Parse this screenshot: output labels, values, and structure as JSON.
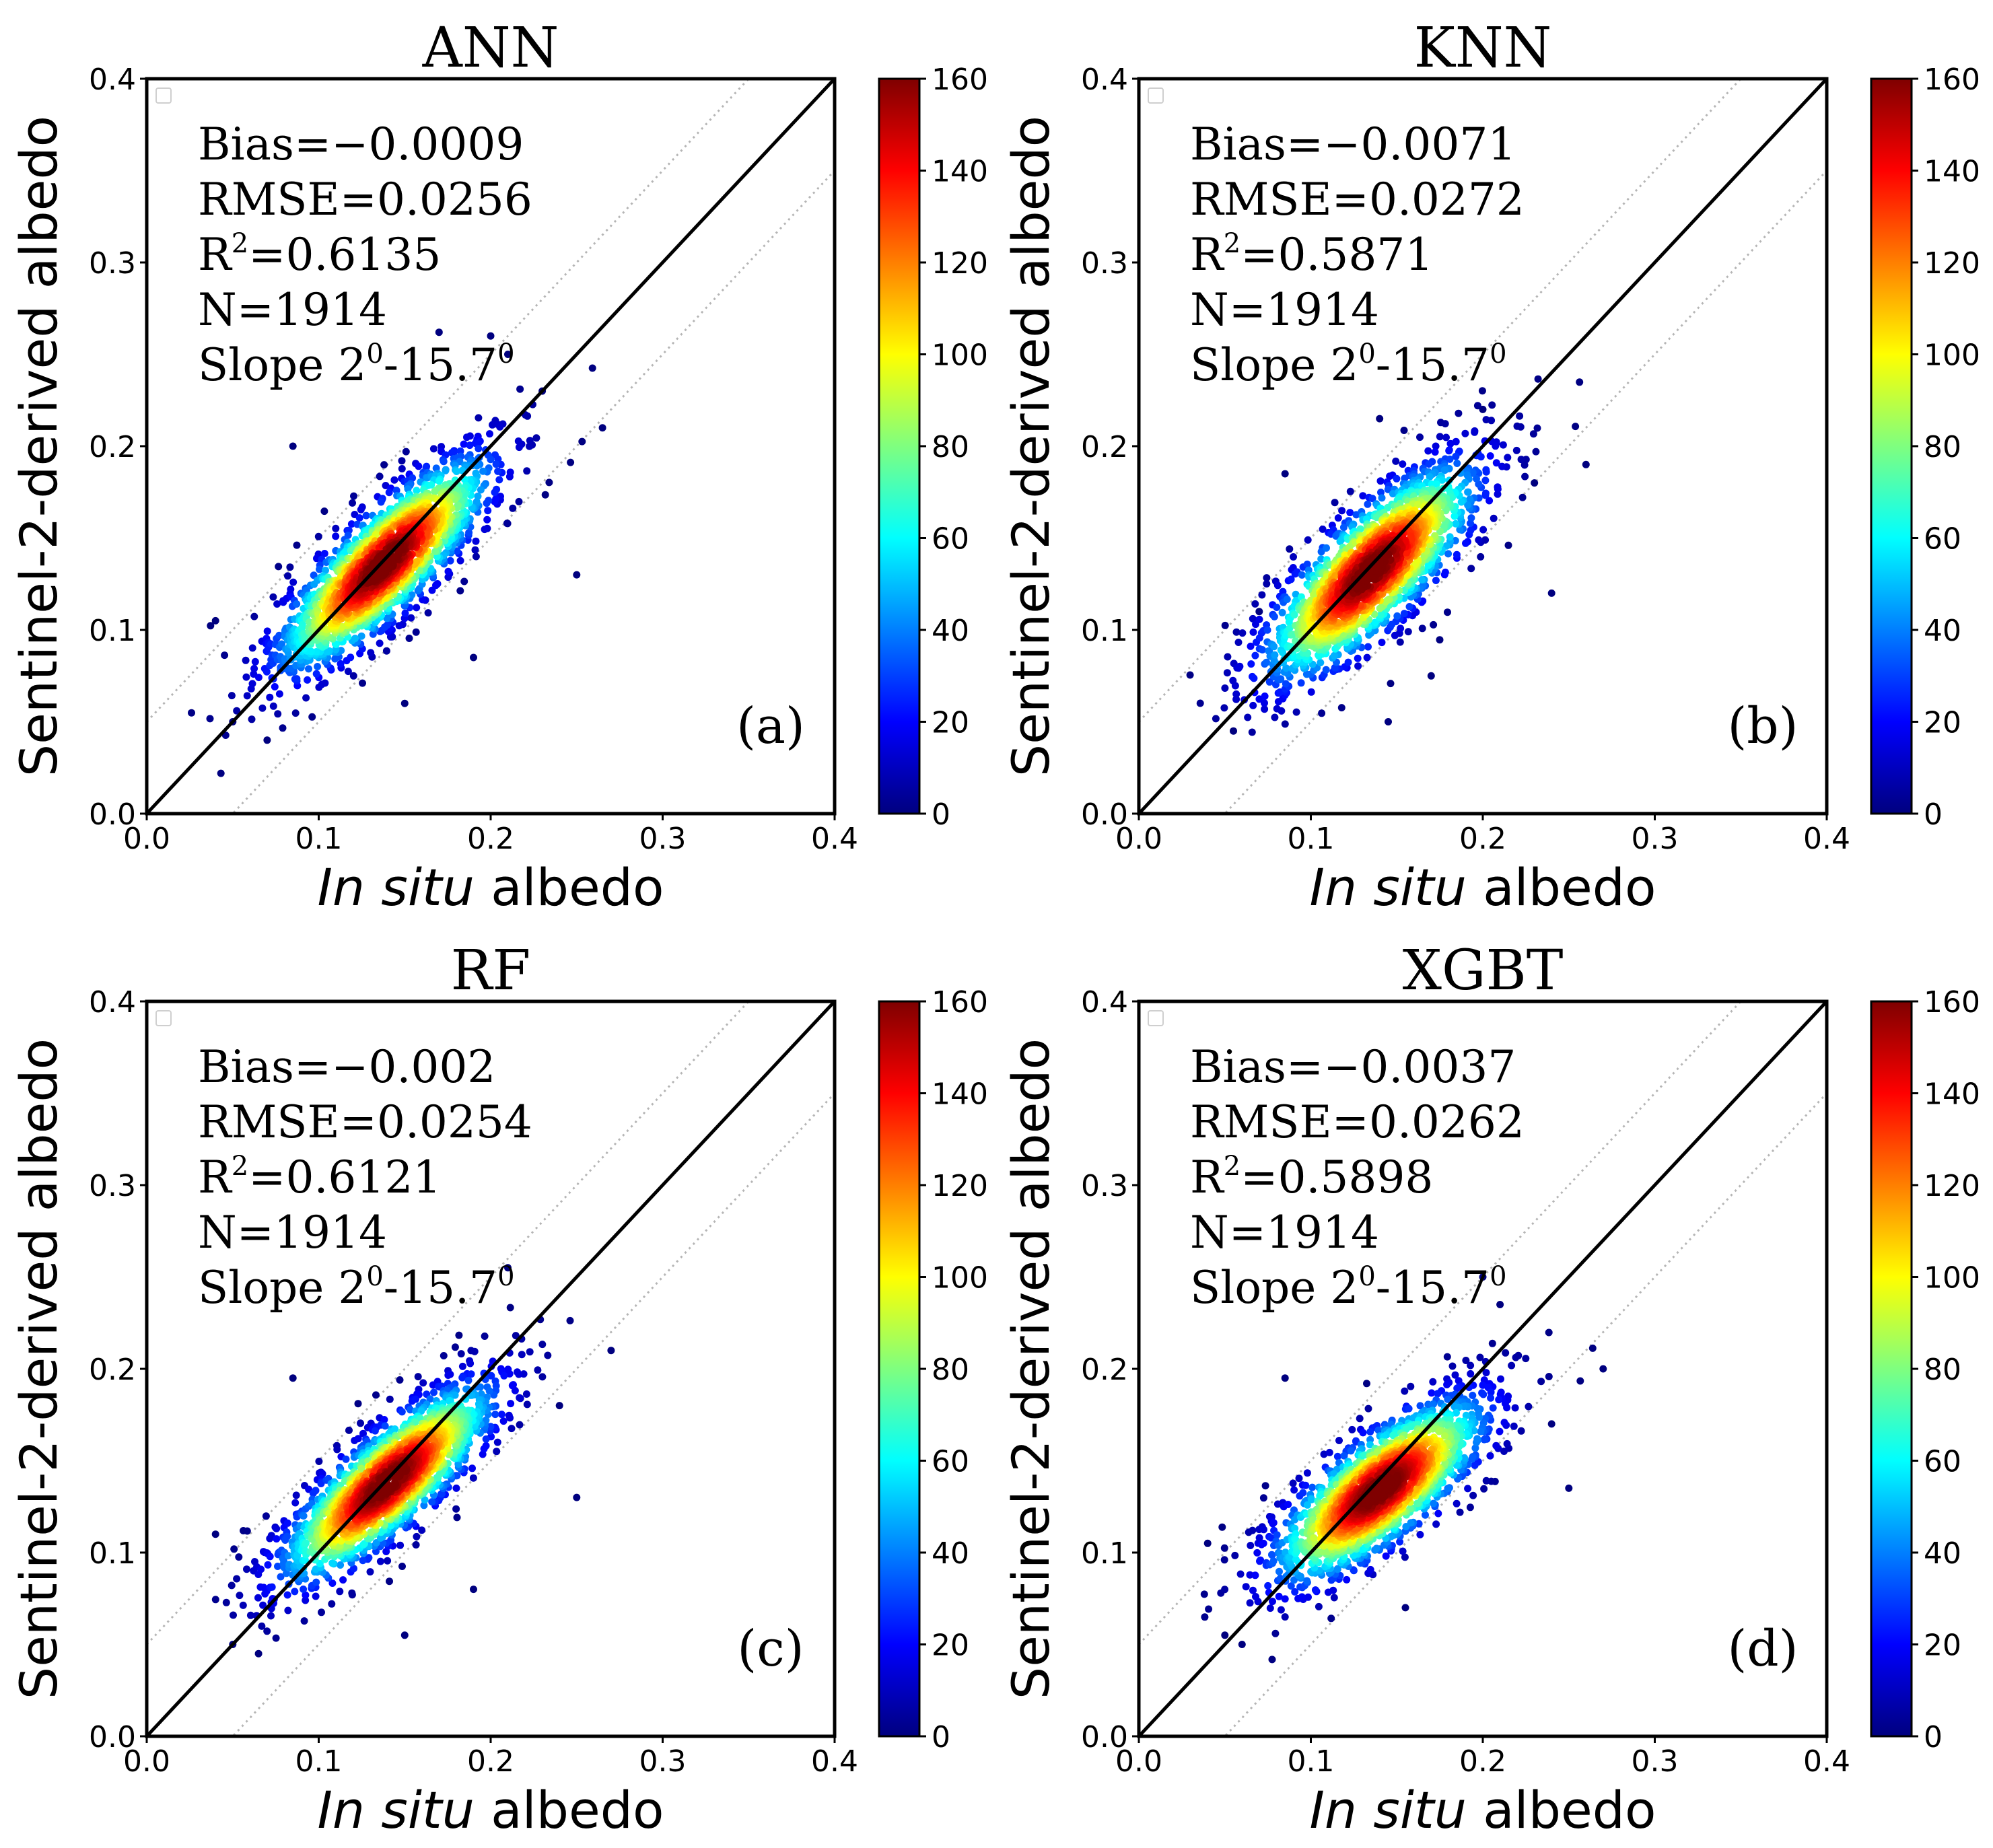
{
  "figure": {
    "colorbar_ticks": [
      "0",
      "20",
      "40",
      "60",
      "80",
      "100",
      "120",
      "140",
      "160"
    ],
    "colorbar_range": [
      0,
      160
    ],
    "colormap": "jet",
    "colormap_stops": [
      "#00007f",
      "#0000ff",
      "#007fff",
      "#00ffff",
      "#7fff7f",
      "#ffff00",
      "#ff7f00",
      "#ff0000",
      "#7f0000"
    ],
    "x_ticks": [
      "0.0",
      "0.1",
      "0.2",
      "0.3",
      "0.4"
    ],
    "y_ticks": [
      "0.0",
      "0.1",
      "0.2",
      "0.3",
      "0.4"
    ],
    "xlabel_italic": "In situ",
    "xlabel_rest": " albedo",
    "ylabel": "Sentinel-2-derived albedo"
  },
  "chart_data": [
    {
      "type": "scatter",
      "title": "ANN",
      "panel_label": "(a)",
      "stats": {
        "bias": "Bias=−0.0009",
        "rmse": "RMSE=0.0256",
        "r2_prefix": "R",
        "r2_value": "=0.6135",
        "n": "N=1914",
        "slope_text": "Slope 2",
        "slope_mid": "-15.7"
      },
      "xlim": [
        0,
        0.4
      ],
      "ylim": [
        0,
        0.4
      ],
      "one_to_one_line": true,
      "dotted_offset_lines": [
        0.05,
        -0.05
      ],
      "cloud": {
        "center": [
          0.138,
          0.136
        ],
        "slope": 0.78,
        "spread_x": 0.032,
        "spread_y": 0.017,
        "n_points": 1914
      },
      "outliers": [
        [
          0.2,
          0.26
        ],
        [
          0.21,
          0.25
        ],
        [
          0.23,
          0.23
        ],
        [
          0.085,
          0.2
        ],
        [
          0.265,
          0.21
        ],
        [
          0.25,
          0.13
        ],
        [
          0.05,
          0.05
        ],
        [
          0.04,
          0.105
        ],
        [
          0.19,
          0.085
        ],
        [
          0.15,
          0.06
        ],
        [
          0.07,
          0.04
        ],
        [
          0.17,
          0.262
        ]
      ]
    },
    {
      "type": "scatter",
      "title": "KNN",
      "panel_label": "(b)",
      "stats": {
        "bias": "Bias=−0.0071",
        "rmse": "RMSE=0.0272",
        "r2_prefix": "R",
        "r2_value": "=0.5871",
        "n": "N=1914",
        "slope_text": "Slope 2",
        "slope_mid": "-15.7"
      },
      "xlim": [
        0,
        0.4
      ],
      "ylim": [
        0,
        0.4
      ],
      "one_to_one_line": true,
      "dotted_offset_lines": [
        0.05,
        -0.05
      ],
      "cloud": {
        "center": [
          0.135,
          0.132
        ],
        "slope": 0.75,
        "spread_x": 0.032,
        "spread_y": 0.019,
        "n_points": 1914
      },
      "outliers": [
        [
          0.2,
          0.22
        ],
        [
          0.26,
          0.19
        ],
        [
          0.24,
          0.12
        ],
        [
          0.07,
          0.11
        ],
        [
          0.055,
          0.045
        ],
        [
          0.17,
          0.075
        ],
        [
          0.145,
          0.05
        ],
        [
          0.085,
          0.185
        ],
        [
          0.14,
          0.215
        ],
        [
          0.23,
          0.18
        ]
      ]
    },
    {
      "type": "scatter",
      "title": "RF",
      "panel_label": "(c)",
      "stats": {
        "bias": "Bias=−0.002",
        "rmse": "RMSE=0.0254",
        "r2_prefix": "R",
        "r2_value": "=0.6121",
        "n": "N=1914",
        "slope_text": "Slope 2",
        "slope_mid": "-15.7"
      },
      "xlim": [
        0,
        0.4
      ],
      "ylim": [
        0,
        0.4
      ],
      "one_to_one_line": true,
      "dotted_offset_lines": [
        0.05,
        -0.05
      ],
      "cloud": {
        "center": [
          0.14,
          0.138
        ],
        "slope": 0.72,
        "spread_x": 0.032,
        "spread_y": 0.016,
        "n_points": 1914
      },
      "outliers": [
        [
          0.21,
          0.255
        ],
        [
          0.27,
          0.21
        ],
        [
          0.25,
          0.13
        ],
        [
          0.05,
          0.05
        ],
        [
          0.04,
          0.11
        ],
        [
          0.19,
          0.08
        ],
        [
          0.15,
          0.055
        ],
        [
          0.085,
          0.195
        ],
        [
          0.065,
          0.045
        ],
        [
          0.24,
          0.18
        ]
      ]
    },
    {
      "type": "scatter",
      "title": "XGBT",
      "panel_label": "(d)",
      "stats": {
        "bias": "Bias=−0.0037",
        "rmse": "RMSE=0.0262",
        "r2_prefix": "R",
        "r2_value": "=0.5898",
        "n": "N=1914",
        "slope_text": "Slope 2",
        "slope_mid": "-15.7"
      },
      "xlim": [
        0,
        0.4
      ],
      "ylim": [
        0,
        0.4
      ],
      "one_to_one_line": true,
      "dotted_offset_lines": [
        0.05,
        -0.05
      ],
      "cloud": {
        "center": [
          0.14,
          0.134
        ],
        "slope": 0.62,
        "spread_x": 0.032,
        "spread_y": 0.017,
        "n_points": 1914
      },
      "outliers": [
        [
          0.2,
          0.25
        ],
        [
          0.21,
          0.235
        ],
        [
          0.27,
          0.2
        ],
        [
          0.25,
          0.135
        ],
        [
          0.05,
          0.055
        ],
        [
          0.04,
          0.105
        ],
        [
          0.155,
          0.07
        ],
        [
          0.085,
          0.195
        ],
        [
          0.06,
          0.05
        ],
        [
          0.24,
          0.17
        ]
      ]
    }
  ]
}
